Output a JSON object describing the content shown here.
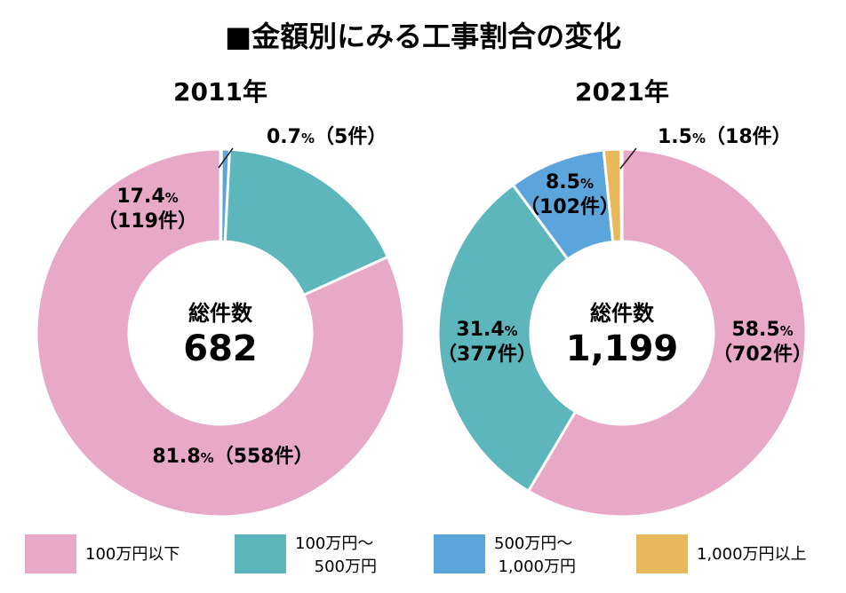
{
  "title": "■金額別にみる工事割合の変化",
  "center_label": "総件数",
  "colors": {
    "band_lt_100": "#e8a9c8",
    "band_100_500": "#5cb6bb",
    "band_500_1000": "#5ba5dc",
    "band_ge_1000": "#e7b95a"
  },
  "legend": [
    {
      "lines": [
        "100万円以下"
      ],
      "color": "#e8a9c8"
    },
    {
      "lines": [
        "100万円〜",
        "500万円"
      ],
      "color": "#5cb6bb"
    },
    {
      "lines": [
        "500万円〜",
        "1,000万円"
      ],
      "color": "#5ba5dc"
    },
    {
      "lines": [
        "1,000万円以上"
      ],
      "color": "#e7b95a"
    }
  ],
  "chart_data": [
    {
      "type": "pie",
      "year": "2011年",
      "total": "682",
      "slices": [
        {
          "category": "100万円以下",
          "percent": 81.8,
          "count": 558,
          "label_lines": [
            {
              "pct": "81.8",
              "cnt": "（558件）"
            }
          ]
        },
        {
          "category": "100万円〜500万円",
          "percent": 17.4,
          "count": 119,
          "label_lines": [
            {
              "pct": "17.4",
              "cnt": ""
            },
            {
              "pct": "",
              "cnt": "（119件）"
            }
          ]
        },
        {
          "category": "500万円〜1,000万円",
          "percent": 0.7,
          "count": 5,
          "label_lines": [
            {
              "pct": "0.7",
              "cnt": "（5件）"
            }
          ]
        }
      ]
    },
    {
      "type": "pie",
      "year": "2021年",
      "total": "1,199",
      "slices": [
        {
          "category": "100万円以下",
          "percent": 58.5,
          "count": 702,
          "label_lines": [
            {
              "pct": "58.5",
              "cnt": ""
            },
            {
              "pct": "",
              "cnt": "（702件）"
            }
          ]
        },
        {
          "category": "100万円〜500万円",
          "percent": 31.4,
          "count": 377,
          "label_lines": [
            {
              "pct": "31.4",
              "cnt": ""
            },
            {
              "pct": "",
              "cnt": "（377件）"
            }
          ]
        },
        {
          "category": "500万円〜1,000万円",
          "percent": 8.5,
          "count": 102,
          "label_lines": [
            {
              "pct": "8.5",
              "cnt": ""
            },
            {
              "pct": "",
              "cnt": "（102件）"
            }
          ]
        },
        {
          "category": "1,000万円以上",
          "percent": 1.5,
          "count": 18,
          "label_lines": [
            {
              "pct": "1.5",
              "cnt": "（18件）"
            }
          ]
        }
      ]
    }
  ]
}
